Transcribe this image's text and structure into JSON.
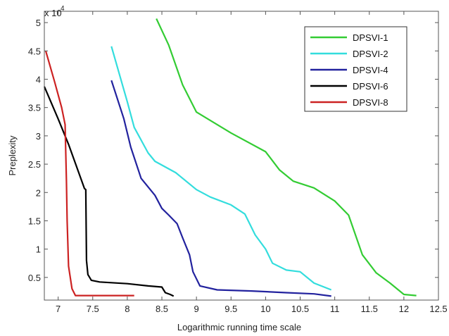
{
  "chart_data": {
    "type": "line",
    "title": "",
    "xlabel": "Logarithmic running time scale",
    "ylabel": "Preplexity",
    "y_multiplier_label": "x 10",
    "y_multiplier_exponent": "4",
    "xlim": [
      6.8,
      12.5
    ],
    "ylim": [
      0.1,
      5.2
    ],
    "x_ticks": [
      7,
      7.5,
      8,
      8.5,
      9,
      9.5,
      10,
      10.5,
      11,
      11.5,
      12,
      12.5
    ],
    "x_tick_labels": [
      "7",
      "7.5",
      "8",
      "8.5",
      "9",
      "9.5",
      "10",
      "10.5",
      "11",
      "11.5",
      "12",
      "12.5"
    ],
    "y_ticks": [
      0.5,
      1,
      1.5,
      2,
      2.5,
      3,
      3.5,
      4,
      4.5,
      5
    ],
    "y_tick_labels": [
      "0.5",
      "1",
      "1.5",
      "2",
      "2.5",
      "3",
      "3.5",
      "4",
      "4.5",
      "5"
    ],
    "grid": false,
    "legend_position": "top-right",
    "series": [
      {
        "name": "DPSVI-1",
        "color": "#33cc33",
        "points": [
          [
            8.42,
            5.07
          ],
          [
            8.6,
            4.6
          ],
          [
            8.8,
            3.9
          ],
          [
            9.0,
            3.42
          ],
          [
            9.5,
            3.05
          ],
          [
            10.0,
            2.72
          ],
          [
            10.2,
            2.4
          ],
          [
            10.4,
            2.2
          ],
          [
            10.7,
            2.08
          ],
          [
            11.0,
            1.85
          ],
          [
            11.2,
            1.6
          ],
          [
            11.4,
            0.9
          ],
          [
            11.6,
            0.58
          ],
          [
            11.8,
            0.4
          ],
          [
            12.0,
            0.2
          ],
          [
            12.18,
            0.18
          ]
        ]
      },
      {
        "name": "DPSVI-2",
        "color": "#33dddd",
        "points": [
          [
            7.77,
            4.58
          ],
          [
            8.0,
            3.6
          ],
          [
            8.1,
            3.15
          ],
          [
            8.3,
            2.7
          ],
          [
            8.4,
            2.55
          ],
          [
            8.7,
            2.35
          ],
          [
            9.0,
            2.05
          ],
          [
            9.2,
            1.92
          ],
          [
            9.5,
            1.78
          ],
          [
            9.7,
            1.62
          ],
          [
            9.85,
            1.25
          ],
          [
            10.0,
            1.0
          ],
          [
            10.1,
            0.75
          ],
          [
            10.3,
            0.63
          ],
          [
            10.5,
            0.6
          ],
          [
            10.7,
            0.4
          ],
          [
            10.95,
            0.28
          ]
        ]
      },
      {
        "name": "DPSVI-4",
        "color": "#22229e",
        "points": [
          [
            7.77,
            3.98
          ],
          [
            7.95,
            3.3
          ],
          [
            8.05,
            2.8
          ],
          [
            8.2,
            2.25
          ],
          [
            8.4,
            1.95
          ],
          [
            8.5,
            1.72
          ],
          [
            8.6,
            1.6
          ],
          [
            8.72,
            1.45
          ],
          [
            8.8,
            1.2
          ],
          [
            8.9,
            0.9
          ],
          [
            8.95,
            0.6
          ],
          [
            9.05,
            0.35
          ],
          [
            9.3,
            0.28
          ],
          [
            9.8,
            0.26
          ],
          [
            10.3,
            0.23
          ],
          [
            10.7,
            0.21
          ],
          [
            10.95,
            0.17
          ]
        ]
      },
      {
        "name": "DPSVI-6",
        "color": "#000000",
        "points": [
          [
            6.8,
            3.87
          ],
          [
            7.0,
            3.3
          ],
          [
            7.15,
            2.85
          ],
          [
            7.38,
            2.07
          ],
          [
            7.4,
            2.05
          ],
          [
            7.41,
            0.8
          ],
          [
            7.43,
            0.55
          ],
          [
            7.48,
            0.45
          ],
          [
            7.6,
            0.42
          ],
          [
            8.0,
            0.39
          ],
          [
            8.3,
            0.35
          ],
          [
            8.5,
            0.33
          ],
          [
            8.55,
            0.23
          ],
          [
            8.62,
            0.2
          ],
          [
            8.67,
            0.17
          ]
        ]
      },
      {
        "name": "DPSVI-8",
        "color": "#cc2222",
        "points": [
          [
            6.82,
            4.5
          ],
          [
            6.95,
            3.95
          ],
          [
            7.05,
            3.5
          ],
          [
            7.1,
            3.2
          ],
          [
            7.12,
            2.2
          ],
          [
            7.13,
            1.5
          ],
          [
            7.15,
            0.7
          ],
          [
            7.2,
            0.3
          ],
          [
            7.25,
            0.18
          ],
          [
            7.6,
            0.18
          ],
          [
            8.0,
            0.18
          ],
          [
            8.1,
            0.18
          ]
        ]
      }
    ]
  }
}
